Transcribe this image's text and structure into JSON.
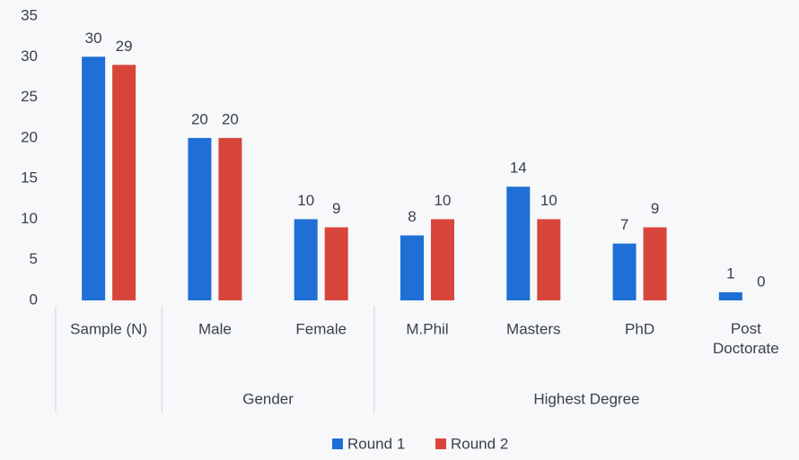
{
  "chart_data": {
    "type": "bar",
    "categories": [
      "Sample (N)",
      "Male",
      "Female",
      "M.Phil",
      "Masters",
      "PhD",
      "Post Doctorate"
    ],
    "category_groups": [
      null,
      "Gender",
      "Gender",
      "Highest Degree",
      "Highest Degree",
      "Highest Degree",
      "Highest Degree"
    ],
    "series": [
      {
        "name": "Round 1",
        "color": "#1f6fd6",
        "values": [
          30,
          20,
          10,
          8,
          14,
          7,
          1
        ]
      },
      {
        "name": "Round 2",
        "color": "#d8463b",
        "values": [
          29,
          20,
          9,
          10,
          10,
          9,
          0
        ]
      }
    ],
    "ylim": [
      0,
      35
    ],
    "yticks": [
      0,
      5,
      10,
      15,
      20,
      25,
      30,
      35
    ],
    "grid": false,
    "legend": "bottom"
  }
}
